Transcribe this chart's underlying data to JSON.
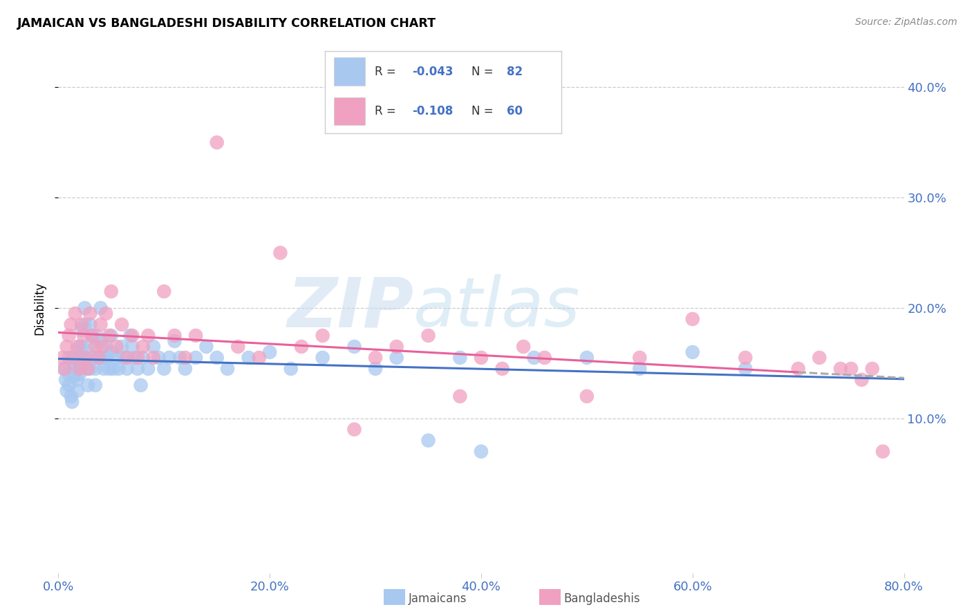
{
  "title": "JAMAICAN VS BANGLADESHI DISABILITY CORRELATION CHART",
  "source": "Source: ZipAtlas.com",
  "ylabel": "Disability",
  "watermark_zip": "ZIP",
  "watermark_atlas": "atlas",
  "legend_jamaicans_R": "-0.043",
  "legend_jamaicans_N": "82",
  "legend_bangladeshis_R": "-0.108",
  "legend_bangladeshis_N": "60",
  "color_jamaicans": "#A8C8F0",
  "color_bangladeshis": "#F0A0C0",
  "color_line_jamaicans": "#4472C4",
  "color_line_bangladeshis": "#E8609A",
  "xlim": [
    0.0,
    0.8
  ],
  "ylim": [
    -0.04,
    0.44
  ],
  "yticks": [
    0.1,
    0.2,
    0.3,
    0.4
  ],
  "xticks": [
    0.0,
    0.2,
    0.4,
    0.6,
    0.8
  ],
  "background_color": "#FFFFFF",
  "jamaicans_x": [
    0.005,
    0.007,
    0.008,
    0.01,
    0.01,
    0.01,
    0.012,
    0.013,
    0.015,
    0.015,
    0.016,
    0.017,
    0.018,
    0.018,
    0.02,
    0.02,
    0.02,
    0.022,
    0.022,
    0.023,
    0.025,
    0.025,
    0.026,
    0.027,
    0.028,
    0.03,
    0.03,
    0.03,
    0.032,
    0.033,
    0.035,
    0.035,
    0.036,
    0.038,
    0.04,
    0.04,
    0.042,
    0.043,
    0.045,
    0.046,
    0.048,
    0.05,
    0.05,
    0.052,
    0.055,
    0.057,
    0.06,
    0.062,
    0.065,
    0.068,
    0.07,
    0.072,
    0.075,
    0.078,
    0.08,
    0.085,
    0.09,
    0.095,
    0.1,
    0.105,
    0.11,
    0.115,
    0.12,
    0.13,
    0.14,
    0.15,
    0.16,
    0.18,
    0.2,
    0.22,
    0.25,
    0.28,
    0.3,
    0.32,
    0.35,
    0.38,
    0.4,
    0.45,
    0.5,
    0.55,
    0.6,
    0.65
  ],
  "jamaicans_y": [
    0.145,
    0.135,
    0.125,
    0.155,
    0.14,
    0.13,
    0.12,
    0.115,
    0.148,
    0.138,
    0.155,
    0.145,
    0.135,
    0.125,
    0.165,
    0.155,
    0.14,
    0.18,
    0.165,
    0.155,
    0.2,
    0.185,
    0.155,
    0.145,
    0.13,
    0.185,
    0.165,
    0.145,
    0.175,
    0.155,
    0.145,
    0.13,
    0.175,
    0.155,
    0.2,
    0.17,
    0.155,
    0.145,
    0.165,
    0.155,
    0.145,
    0.175,
    0.16,
    0.145,
    0.155,
    0.145,
    0.165,
    0.155,
    0.145,
    0.175,
    0.165,
    0.155,
    0.145,
    0.13,
    0.155,
    0.145,
    0.165,
    0.155,
    0.145,
    0.155,
    0.17,
    0.155,
    0.145,
    0.155,
    0.165,
    0.155,
    0.145,
    0.155,
    0.16,
    0.145,
    0.155,
    0.165,
    0.145,
    0.155,
    0.08,
    0.155,
    0.07,
    0.155,
    0.155,
    0.145,
    0.16,
    0.145
  ],
  "bangladeshis_x": [
    0.004,
    0.006,
    0.008,
    0.01,
    0.012,
    0.014,
    0.016,
    0.018,
    0.02,
    0.022,
    0.024,
    0.026,
    0.028,
    0.03,
    0.032,
    0.035,
    0.038,
    0.04,
    0.042,
    0.045,
    0.048,
    0.05,
    0.055,
    0.06,
    0.065,
    0.07,
    0.075,
    0.08,
    0.085,
    0.09,
    0.1,
    0.11,
    0.12,
    0.13,
    0.15,
    0.17,
    0.19,
    0.21,
    0.23,
    0.25,
    0.28,
    0.3,
    0.32,
    0.35,
    0.38,
    0.4,
    0.42,
    0.44,
    0.46,
    0.5,
    0.55,
    0.6,
    0.65,
    0.7,
    0.72,
    0.74,
    0.75,
    0.76,
    0.77,
    0.78
  ],
  "bangladeshis_y": [
    0.155,
    0.145,
    0.165,
    0.175,
    0.185,
    0.155,
    0.195,
    0.165,
    0.145,
    0.185,
    0.175,
    0.155,
    0.145,
    0.195,
    0.175,
    0.165,
    0.155,
    0.185,
    0.165,
    0.195,
    0.175,
    0.215,
    0.165,
    0.185,
    0.155,
    0.175,
    0.155,
    0.165,
    0.175,
    0.155,
    0.215,
    0.175,
    0.155,
    0.175,
    0.35,
    0.165,
    0.155,
    0.25,
    0.165,
    0.175,
    0.09,
    0.155,
    0.165,
    0.175,
    0.12,
    0.155,
    0.145,
    0.165,
    0.155,
    0.12,
    0.155,
    0.19,
    0.155,
    0.145,
    0.155,
    0.145,
    0.145,
    0.135,
    0.145,
    0.07
  ]
}
